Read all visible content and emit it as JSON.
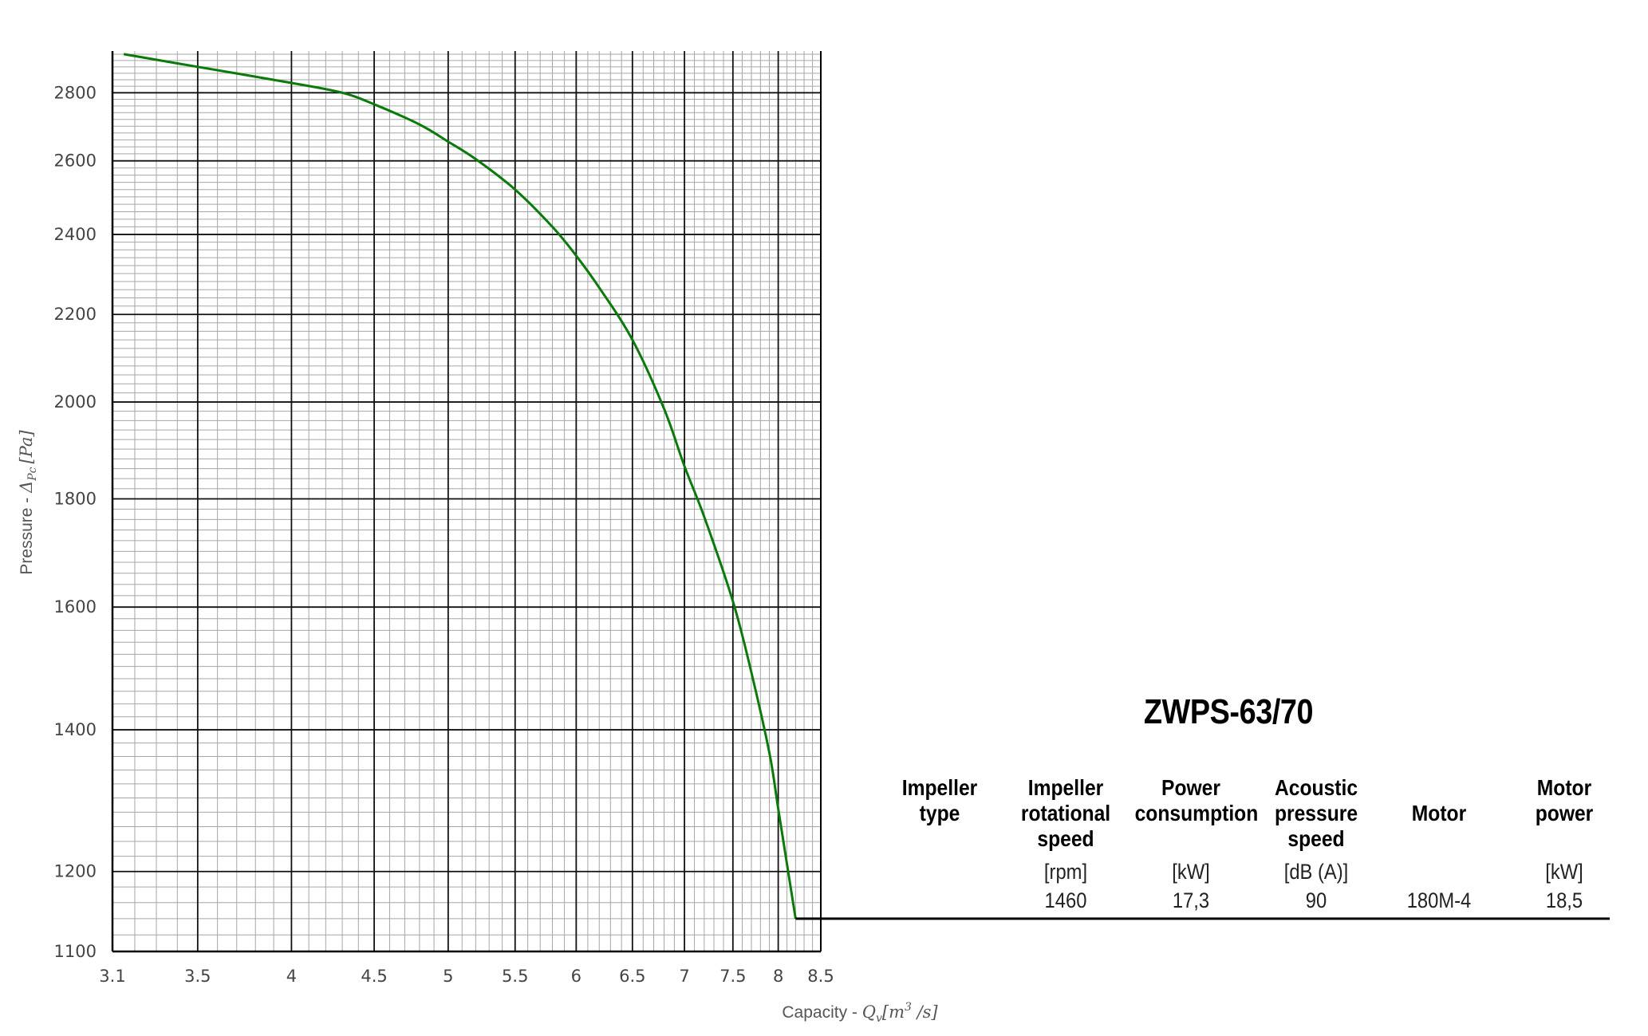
{
  "chart_data": {
    "type": "line",
    "title": "ZWPS-63/70",
    "xlabel": {
      "prefix": "Capacity - ",
      "symbol": "Q",
      "subscript": "v",
      "unit_open": "[m",
      "unit_sup": "3",
      "unit_close": " /s]"
    },
    "ylabel": {
      "prefix": "Pressure - ",
      "symbol": "Δ",
      "subscript": "Pc",
      "unit": "[Pa]"
    },
    "x_scale": "log",
    "y_scale": "log",
    "xlim": [
      3.1,
      8.5
    ],
    "ylim": [
      1100,
      2930
    ],
    "x_ticks": [
      3.1,
      3.5,
      4,
      4.5,
      5,
      5.5,
      6,
      6.5,
      7,
      7.5,
      8,
      8.5
    ],
    "x_tick_labels": [
      "3.1",
      "3.5",
      "4",
      "4.5",
      "5",
      "5.5",
      "6",
      "6.5",
      "7",
      "7.5",
      "8",
      "8.5"
    ],
    "y_ticks": [
      1100,
      1200,
      1400,
      1600,
      1800,
      2000,
      2200,
      2400,
      2600,
      2800
    ],
    "y_tick_labels": [
      "1100",
      "1200",
      "1400",
      "1600",
      "1800",
      "2000",
      "2200",
      "2400",
      "2600",
      "2800"
    ],
    "grid": true,
    "legend": "none",
    "series": [
      {
        "color": "#0a7a0a",
        "x": [
          3.15,
          3.5,
          4.0,
          4.3,
          4.5,
          4.8,
          5.0,
          5.2,
          5.5,
          5.8,
          6.0,
          6.2,
          6.5,
          6.8,
          7.0,
          7.2,
          7.5,
          7.7,
          7.9,
          8.0,
          8.2
        ],
        "y": [
          2920,
          2880,
          2830,
          2800,
          2765,
          2705,
          2655,
          2605,
          2520,
          2420,
          2345,
          2265,
          2140,
          1985,
          1865,
          1765,
          1610,
          1490,
          1365,
          1285,
          1140
        ]
      }
    ]
  },
  "table": {
    "columns": [
      {
        "header": [
          "Impeller",
          "type"
        ],
        "unit": "",
        "value": ""
      },
      {
        "header": [
          "Impeller",
          "rotational",
          "speed"
        ],
        "unit": "[rpm]",
        "value": "1460"
      },
      {
        "header": [
          "Power",
          "consumption"
        ],
        "unit": "[kW]",
        "value": "17,3"
      },
      {
        "header": [
          "Acoustic",
          "pressure",
          "speed"
        ],
        "unit": "[dB (A)]",
        "value": "90"
      },
      {
        "header": [
          "Motor"
        ],
        "unit": "",
        "value": "180M-4"
      },
      {
        "header": [
          "Motor",
          "power"
        ],
        "unit": "[kW]",
        "value": "18,5"
      }
    ]
  }
}
